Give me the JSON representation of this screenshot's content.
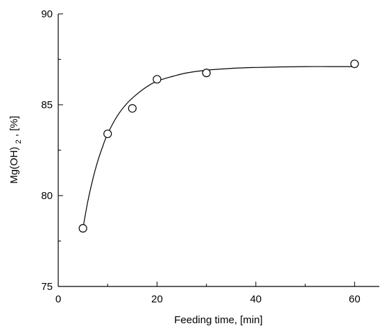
{
  "chart_data": {
    "type": "scatter",
    "title": "",
    "xlabel": "Feeding time, [min]",
    "ylabel": {
      "prefix": "Mg(OH)",
      "subscript": "2",
      "suffix": ", [%]"
    },
    "xlim": [
      0,
      65
    ],
    "ylim": [
      75,
      90
    ],
    "xticks": [
      0,
      20,
      40,
      60
    ],
    "yticks": [
      75,
      80,
      85,
      90
    ],
    "grid": false,
    "legend": "none",
    "series": [
      {
        "marker": "open-circle",
        "x": [
          5,
          10,
          15,
          20,
          30,
          60
        ],
        "y": [
          78.2,
          83.4,
          84.8,
          86.4,
          86.75,
          87.25
        ]
      }
    ],
    "fit_curve": {
      "style": "smooth-line",
      "x": [
        5,
        6,
        7,
        8,
        9,
        10,
        12,
        14,
        16,
        18,
        20,
        23,
        26,
        30,
        35,
        40,
        45,
        50,
        55,
        60
      ],
      "y": [
        78.2,
        79.7,
        80.9,
        81.9,
        82.7,
        83.4,
        84.4,
        85.1,
        85.6,
        86.0,
        86.3,
        86.55,
        86.75,
        86.9,
        87.0,
        87.05,
        87.08,
        87.1,
        87.1,
        87.1
      ]
    }
  }
}
